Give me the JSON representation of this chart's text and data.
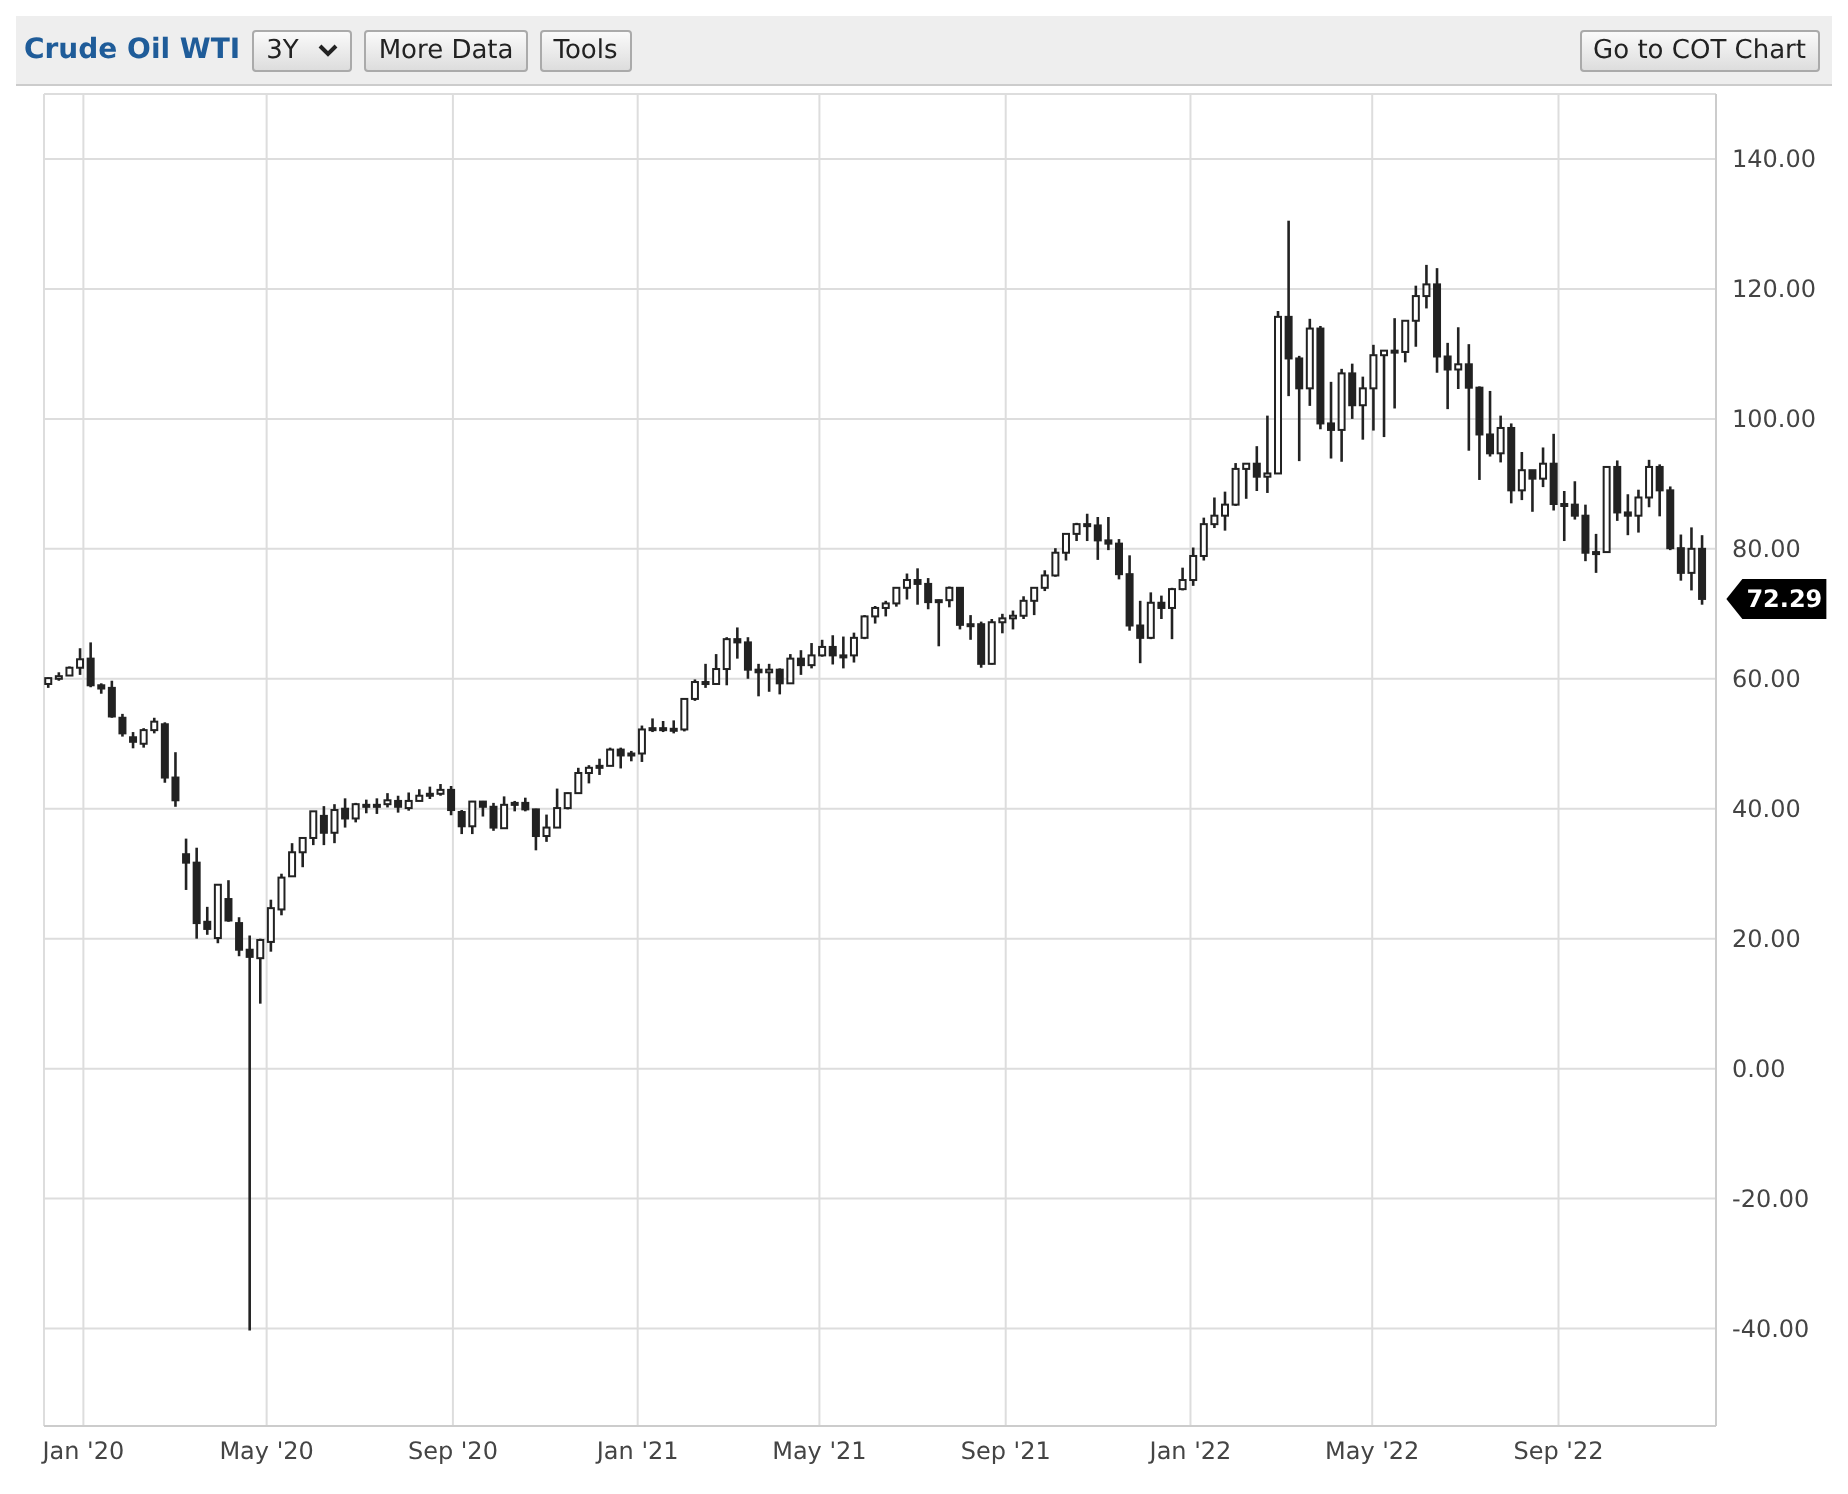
{
  "chart_data": {
    "type": "candlestick",
    "title": "Crude Oil WTI",
    "annotations": [
      "3Y",
      "More Data",
      "Tools",
      "Go to COT Chart",
      {
        "text": "72.29",
        "x": "2022-12-05",
        "y": 72.29
      }
    ],
    "color": "#222222",
    "grid": true,
    "xlim": [
      "2019-12-06",
      "2022-12-14"
    ],
    "xticks": [
      {
        "value": "2020-01-01",
        "label": "Jan '20"
      },
      {
        "value": "2020-05-01",
        "label": "May '20"
      },
      {
        "value": "2020-09-01",
        "label": "Sep '20"
      },
      {
        "value": "2021-01-01",
        "label": "Jan '21"
      },
      {
        "value": "2021-05-01",
        "label": "May '21"
      },
      {
        "value": "2021-09-01",
        "label": "Sep '21"
      },
      {
        "value": "2022-01-01",
        "label": "Jan '22"
      },
      {
        "value": "2022-05-01",
        "label": "May '22"
      },
      {
        "value": "2022-09-01",
        "label": "Sep '22"
      }
    ],
    "ylim": [
      -55,
      150
    ],
    "yticks": [
      {
        "value": -40,
        "label": "-40.00"
      },
      {
        "value": -20,
        "label": "-20.00"
      },
      {
        "value": 0,
        "label": "0.00"
      },
      {
        "value": 20,
        "label": "20.00"
      },
      {
        "value": 40,
        "label": "40.00"
      },
      {
        "value": 60,
        "label": "60.00"
      },
      {
        "value": 80,
        "label": "80.00"
      },
      {
        "value": 100,
        "label": "100.00"
      },
      {
        "value": 120,
        "label": "120.00"
      },
      {
        "value": 140,
        "label": "140.00"
      }
    ],
    "x": [
      "2019-12-09",
      "2019-12-16",
      "2019-12-23",
      "2019-12-30",
      "2020-01-06",
      "2020-01-13",
      "2020-01-20",
      "2020-01-27",
      "2020-02-03",
      "2020-02-10",
      "2020-02-17",
      "2020-02-24",
      "2020-03-02",
      "2020-03-09",
      "2020-03-16",
      "2020-03-23",
      "2020-03-30",
      "2020-04-06",
      "2020-04-13",
      "2020-04-20",
      "2020-04-27",
      "2020-05-04",
      "2020-05-11",
      "2020-05-18",
      "2020-05-25",
      "2020-06-01",
      "2020-06-08",
      "2020-06-15",
      "2020-06-22",
      "2020-06-29",
      "2020-07-06",
      "2020-07-13",
      "2020-07-20",
      "2020-07-27",
      "2020-08-03",
      "2020-08-10",
      "2020-08-17",
      "2020-08-24",
      "2020-08-31",
      "2020-09-07",
      "2020-09-14",
      "2020-09-21",
      "2020-09-28",
      "2020-10-05",
      "2020-10-12",
      "2020-10-19",
      "2020-10-26",
      "2020-11-02",
      "2020-11-09",
      "2020-11-16",
      "2020-11-23",
      "2020-11-30",
      "2020-12-07",
      "2020-12-14",
      "2020-12-21",
      "2020-12-28",
      "2021-01-04",
      "2021-01-11",
      "2021-01-18",
      "2021-01-25",
      "2021-02-01",
      "2021-02-08",
      "2021-02-15",
      "2021-02-22",
      "2021-03-01",
      "2021-03-08",
      "2021-03-15",
      "2021-03-22",
      "2021-03-29",
      "2021-04-05",
      "2021-04-12",
      "2021-04-19",
      "2021-04-26",
      "2021-05-03",
      "2021-05-10",
      "2021-05-17",
      "2021-05-24",
      "2021-05-31",
      "2021-06-07",
      "2021-06-14",
      "2021-06-21",
      "2021-06-28",
      "2021-07-05",
      "2021-07-12",
      "2021-07-19",
      "2021-07-26",
      "2021-08-02",
      "2021-08-09",
      "2021-08-16",
      "2021-08-23",
      "2021-08-30",
      "2021-09-06",
      "2021-09-13",
      "2021-09-20",
      "2021-09-27",
      "2021-10-04",
      "2021-10-11",
      "2021-10-18",
      "2021-10-25",
      "2021-11-01",
      "2021-11-08",
      "2021-11-15",
      "2021-11-22",
      "2021-11-29",
      "2021-12-06",
      "2021-12-13",
      "2021-12-20",
      "2021-12-27",
      "2022-01-03",
      "2022-01-10",
      "2022-01-17",
      "2022-01-24",
      "2022-01-31",
      "2022-02-07",
      "2022-02-14",
      "2022-02-21",
      "2022-02-28",
      "2022-03-07",
      "2022-03-14",
      "2022-03-21",
      "2022-03-28",
      "2022-04-04",
      "2022-04-11",
      "2022-04-18",
      "2022-04-25",
      "2022-05-02",
      "2022-05-09",
      "2022-05-16",
      "2022-05-23",
      "2022-05-30",
      "2022-06-06",
      "2022-06-13",
      "2022-06-20",
      "2022-06-27",
      "2022-07-04",
      "2022-07-11",
      "2022-07-18",
      "2022-07-25",
      "2022-08-01",
      "2022-08-08",
      "2022-08-15",
      "2022-08-22",
      "2022-08-29",
      "2022-09-05",
      "2022-09-12",
      "2022-09-19",
      "2022-09-26",
      "2022-10-03",
      "2022-10-10",
      "2022-10-17",
      "2022-10-24",
      "2022-10-31",
      "2022-11-07",
      "2022-11-14",
      "2022-11-21",
      "2022-11-28",
      "2022-12-05"
    ],
    "ohlc": [
      [
        59.2,
        60.2,
        58.6,
        60.1
      ],
      [
        60.0,
        61.0,
        59.7,
        60.4
      ],
      [
        60.5,
        61.9,
        60.5,
        61.7
      ],
      [
        61.7,
        64.7,
        60.6,
        63.0
      ],
      [
        63.1,
        65.6,
        58.7,
        59.0
      ],
      [
        59.0,
        59.3,
        57.7,
        58.5
      ],
      [
        58.6,
        59.7,
        54.0,
        54.2
      ],
      [
        54.0,
        54.6,
        51.1,
        51.6
      ],
      [
        51.0,
        51.8,
        49.3,
        50.3
      ],
      [
        50.0,
        52.4,
        49.4,
        52.1
      ],
      [
        52.1,
        54.0,
        51.6,
        53.4
      ],
      [
        53.0,
        53.3,
        44.0,
        44.8
      ],
      [
        44.8,
        48.7,
        40.3,
        41.3
      ],
      [
        33.0,
        35.4,
        27.5,
        31.7
      ],
      [
        31.7,
        34.0,
        20.0,
        22.4
      ],
      [
        22.6,
        24.9,
        20.6,
        21.5
      ],
      [
        20.1,
        28.4,
        19.3,
        28.3
      ],
      [
        26.1,
        29.0,
        22.6,
        22.8
      ],
      [
        22.4,
        23.3,
        17.3,
        18.3
      ],
      [
        18.3,
        20.5,
        -40.32,
        17.2
      ],
      [
        17.0,
        20.0,
        10.0,
        19.8
      ],
      [
        19.5,
        26.0,
        18.0,
        24.7
      ],
      [
        24.5,
        30.0,
        23.6,
        29.4
      ],
      [
        29.6,
        34.7,
        29.5,
        33.3
      ],
      [
        33.3,
        35.5,
        31.0,
        35.5
      ],
      [
        35.5,
        39.6,
        34.4,
        39.6
      ],
      [
        38.9,
        40.4,
        34.4,
        36.3
      ],
      [
        36.3,
        40.7,
        34.7,
        39.8
      ],
      [
        40.0,
        41.6,
        37.1,
        38.5
      ],
      [
        38.5,
        40.9,
        37.9,
        40.7
      ],
      [
        40.6,
        41.4,
        39.3,
        40.6
      ],
      [
        40.3,
        41.6,
        39.2,
        40.6
      ],
      [
        40.7,
        42.4,
        40.2,
        41.3
      ],
      [
        41.2,
        42.0,
        39.4,
        40.3
      ],
      [
        40.1,
        42.5,
        39.7,
        41.2
      ],
      [
        41.2,
        43.0,
        41.2,
        42.0
      ],
      [
        42.0,
        43.4,
        41.5,
        42.3
      ],
      [
        42.3,
        43.8,
        42.0,
        42.9
      ],
      [
        42.9,
        43.5,
        39.0,
        39.8
      ],
      [
        39.5,
        39.8,
        36.1,
        37.3
      ],
      [
        37.3,
        41.2,
        36.1,
        41.1
      ],
      [
        41.1,
        41.2,
        38.8,
        40.3
      ],
      [
        40.3,
        40.9,
        36.6,
        37.1
      ],
      [
        37.0,
        41.9,
        37.0,
        40.6
      ],
      [
        40.6,
        41.2,
        39.6,
        40.9
      ],
      [
        40.9,
        41.7,
        39.6,
        39.9
      ],
      [
        39.9,
        40.0,
        33.6,
        35.8
      ],
      [
        35.8,
        39.1,
        34.9,
        37.1
      ],
      [
        37.1,
        43.1,
        37.1,
        40.1
      ],
      [
        40.1,
        42.5,
        39.9,
        42.4
      ],
      [
        42.4,
        46.3,
        42.4,
        45.5
      ],
      [
        45.5,
        46.7,
        43.9,
        46.3
      ],
      [
        46.3,
        47.7,
        45.2,
        46.6
      ],
      [
        46.6,
        49.4,
        46.6,
        49.1
      ],
      [
        49.1,
        49.4,
        46.2,
        48.2
      ],
      [
        48.2,
        48.9,
        47.3,
        48.5
      ],
      [
        48.5,
        52.8,
        47.2,
        52.2
      ],
      [
        52.2,
        53.9,
        51.8,
        52.4
      ],
      [
        52.4,
        53.5,
        51.8,
        52.3
      ],
      [
        52.3,
        53.6,
        51.6,
        52.2
      ],
      [
        52.2,
        57.0,
        51.9,
        56.9
      ],
      [
        56.9,
        59.9,
        56.6,
        59.5
      ],
      [
        59.5,
        62.3,
        58.6,
        59.2
      ],
      [
        59.2,
        63.8,
        59.2,
        61.5
      ],
      [
        61.5,
        66.4,
        59.0,
        66.1
      ],
      [
        66.1,
        67.9,
        63.1,
        65.6
      ],
      [
        65.6,
        66.4,
        60.0,
        61.4
      ],
      [
        61.4,
        62.3,
        57.3,
        61.0
      ],
      [
        61.0,
        62.3,
        58.0,
        61.4
      ],
      [
        61.4,
        61.6,
        57.6,
        59.3
      ],
      [
        59.3,
        63.8,
        59.2,
        63.1
      ],
      [
        63.1,
        64.4,
        60.6,
        62.1
      ],
      [
        62.1,
        65.5,
        61.6,
        63.6
      ],
      [
        63.6,
        66.0,
        63.4,
        64.9
      ],
      [
        64.9,
        66.7,
        62.2,
        63.6
      ],
      [
        63.6,
        66.5,
        61.6,
        63.6
      ],
      [
        63.6,
        67.1,
        62.5,
        66.3
      ],
      [
        66.3,
        69.8,
        66.1,
        69.6
      ],
      [
        69.6,
        71.2,
        68.5,
        70.9
      ],
      [
        70.9,
        72.0,
        69.6,
        71.6
      ],
      [
        71.6,
        74.0,
        71.1,
        74.0
      ],
      [
        74.0,
        76.2,
        72.2,
        75.2
      ],
      [
        75.2,
        77.0,
        71.4,
        74.6
      ],
      [
        74.6,
        75.5,
        70.7,
        71.8
      ],
      [
        71.8,
        72.2,
        65.0,
        72.1
      ],
      [
        72.1,
        74.2,
        71.0,
        74.0
      ],
      [
        74.0,
        74.0,
        67.6,
        68.3
      ],
      [
        68.3,
        69.8,
        66.0,
        68.4
      ],
      [
        68.4,
        68.8,
        61.7,
        62.3
      ],
      [
        62.3,
        69.2,
        62.2,
        68.7
      ],
      [
        68.7,
        70.0,
        67.0,
        69.3
      ],
      [
        69.3,
        70.5,
        67.6,
        69.7
      ],
      [
        69.7,
        72.7,
        69.2,
        72.0
      ],
      [
        72.0,
        74.0,
        69.8,
        74.0
      ],
      [
        74.0,
        76.7,
        73.5,
        75.9
      ],
      [
        75.9,
        80.1,
        75.7,
        79.4
      ],
      [
        79.4,
        82.3,
        78.2,
        82.3
      ],
      [
        82.3,
        84.0,
        81.2,
        83.8
      ],
      [
        83.8,
        85.4,
        81.2,
        83.6
      ],
      [
        83.6,
        84.9,
        78.3,
        81.3
      ],
      [
        81.3,
        84.9,
        79.8,
        80.8
      ],
      [
        80.8,
        81.5,
        75.3,
        76.1
      ],
      [
        76.1,
        79.0,
        67.4,
        68.2
      ],
      [
        68.2,
        72.0,
        62.4,
        66.3
      ],
      [
        66.3,
        73.3,
        66.1,
        71.7
      ],
      [
        71.7,
        72.8,
        69.2,
        70.9
      ],
      [
        70.9,
        74.0,
        66.1,
        73.8
      ],
      [
        73.8,
        77.1,
        73.6,
        75.2
      ],
      [
        75.2,
        80.2,
        74.3,
        78.9
      ],
      [
        78.9,
        84.8,
        78.2,
        83.8
      ],
      [
        83.8,
        87.9,
        83.2,
        85.1
      ],
      [
        85.1,
        88.8,
        82.8,
        86.8
      ],
      [
        86.8,
        93.2,
        86.6,
        92.3
      ],
      [
        92.3,
        93.2,
        87.7,
        93.1
      ],
      [
        93.1,
        95.8,
        88.9,
        91.1
      ],
      [
        91.1,
        100.5,
        88.6,
        91.6
      ],
      [
        91.6,
        116.6,
        91.6,
        115.7
      ],
      [
        115.7,
        130.5,
        103.5,
        109.3
      ],
      [
        109.3,
        109.7,
        93.5,
        104.7
      ],
      [
        104.7,
        115.4,
        102.0,
        113.9
      ],
      [
        113.9,
        114.3,
        98.4,
        99.3
      ],
      [
        99.3,
        105.7,
        93.9,
        98.3
      ],
      [
        98.3,
        107.7,
        93.4,
        107.0
      ],
      [
        107.0,
        108.5,
        100.0,
        102.1
      ],
      [
        102.1,
        106.5,
        96.8,
        104.7
      ],
      [
        104.7,
        111.4,
        98.2,
        109.8
      ],
      [
        109.8,
        110.6,
        97.2,
        110.5
      ],
      [
        110.5,
        115.5,
        101.6,
        110.3
      ],
      [
        110.3,
        115.2,
        108.7,
        115.1
      ],
      [
        115.1,
        120.5,
        111.1,
        118.9
      ],
      [
        118.9,
        123.7,
        117.0,
        120.7
      ],
      [
        120.7,
        123.2,
        107.1,
        109.6
      ],
      [
        109.6,
        111.7,
        101.5,
        107.6
      ],
      [
        107.6,
        114.1,
        104.6,
        108.4
      ],
      [
        108.4,
        111.5,
        95.1,
        104.8
      ],
      [
        104.8,
        105.0,
        90.6,
        97.6
      ],
      [
        97.6,
        104.3,
        94.2,
        94.7
      ],
      [
        94.7,
        100.5,
        93.3,
        98.6
      ],
      [
        98.6,
        99.3,
        87.0,
        89.0
      ],
      [
        89.0,
        94.9,
        87.5,
        92.1
      ],
      [
        92.1,
        92.1,
        85.7,
        90.8
      ],
      [
        90.8,
        95.6,
        89.5,
        93.1
      ],
      [
        93.1,
        97.7,
        85.9,
        86.9
      ],
      [
        86.9,
        88.9,
        81.2,
        86.8
      ],
      [
        86.8,
        90.4,
        84.5,
        85.1
      ],
      [
        85.1,
        86.8,
        78.1,
        79.4
      ],
      [
        79.4,
        82.3,
        76.3,
        79.5
      ],
      [
        79.5,
        92.7,
        79.5,
        92.6
      ],
      [
        92.6,
        93.6,
        84.3,
        85.6
      ],
      [
        85.6,
        88.4,
        82.1,
        85.1
      ],
      [
        85.1,
        89.1,
        82.5,
        87.9
      ],
      [
        87.9,
        93.7,
        86.4,
        92.6
      ],
      [
        92.6,
        93.0,
        85.0,
        89.0
      ],
      [
        89.0,
        89.6,
        79.8,
        80.1
      ],
      [
        80.1,
        82.2,
        75.1,
        76.3
      ],
      [
        76.3,
        83.3,
        73.6,
        80.0
      ],
      [
        80.0,
        82.1,
        71.4,
        72.29
      ]
    ]
  }
}
